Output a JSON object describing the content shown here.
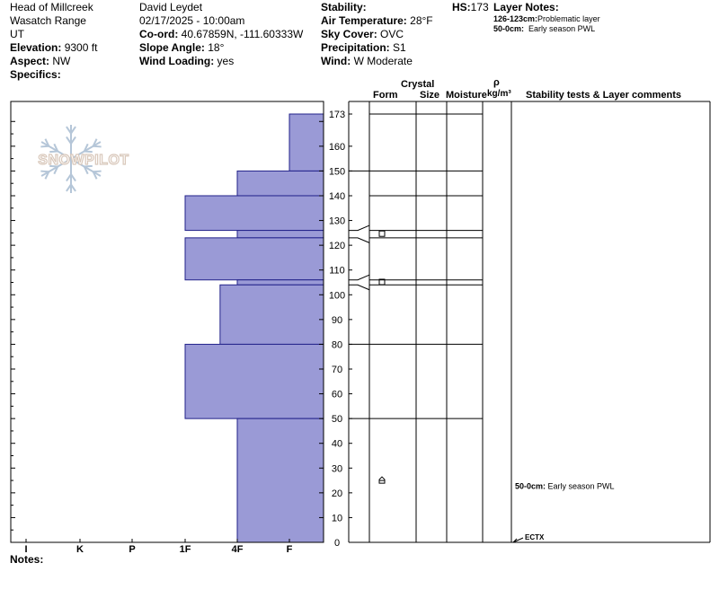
{
  "header": {
    "location": "Head of Millcreek",
    "range": "Wasatch Range",
    "state": "UT",
    "elevation_label": "Elevation:",
    "elevation": "9300 ft",
    "aspect_label": "Aspect:",
    "aspect": "NW",
    "specifics_label": "Specifics:",
    "observer": "David Leydet",
    "datetime": "02/17/2025 - 10:00am",
    "coord_label": "Co-ord:",
    "coord": "40.67859N, -111.60333W",
    "slope_label": "Slope Angle:",
    "slope": "18°",
    "wind_loading_label": "Wind Loading:",
    "wind_loading": "yes",
    "stability_label": "Stability:",
    "air_temp_label": "Air Temperature:",
    "air_temp": "28°F",
    "sky_label": "Sky Cover:",
    "sky": "OVC",
    "precip_label": "Precipitation:",
    "precip": "S1",
    "wind_label": "Wind:",
    "wind": "W Moderate",
    "hs_label": "HS:",
    "hs": "173",
    "layer_notes_label": "Layer Notes:",
    "layer_notes": [
      {
        "range": "126-123cm:",
        "text": "Problematic layer"
      },
      {
        "range": "50-0cm:",
        "text": "Early season PWL"
      }
    ]
  },
  "notes_label": "Notes:",
  "logo_text": "SNOWPILOT",
  "columns": {
    "crystal": "Crystal",
    "form": "Form",
    "size": "Size",
    "moisture": "Moisture",
    "rho": "ρ",
    "density": "kg/m³",
    "stability": "Stability tests & Layer comments"
  },
  "colors": {
    "hardness_fill": "#9a9ad6",
    "hardness_stroke": "#22228a",
    "logo": "#d9c8bb",
    "flake": "#b5c6d8"
  },
  "chart_data": {
    "type": "bar",
    "title": "",
    "y_range": [
      0,
      173
    ],
    "y_ticks": [
      0,
      10,
      20,
      30,
      40,
      50,
      60,
      70,
      80,
      90,
      100,
      110,
      120,
      130,
      140,
      150,
      160,
      173
    ],
    "hardness_scale": [
      "I",
      "K",
      "P",
      "1F",
      "4F",
      "F"
    ],
    "layers": [
      {
        "top": 173,
        "bottom": 150,
        "hardness": 5.0
      },
      {
        "top": 150,
        "bottom": 140,
        "hardness": 4.0
      },
      {
        "top": 140,
        "bottom": 126,
        "hardness": 3.0
      },
      {
        "top": 126,
        "bottom": 123,
        "hardness": 4.0
      },
      {
        "top": 123,
        "bottom": 106,
        "hardness": 3.0
      },
      {
        "top": 106,
        "bottom": 104,
        "hardness": 4.0
      },
      {
        "top": 104,
        "bottom": 80,
        "hardness": 3.67
      },
      {
        "top": 80,
        "bottom": 50,
        "hardness": 3.0
      },
      {
        "top": 50,
        "bottom": 0,
        "hardness": 4.0
      }
    ],
    "layer_lines": [
      173,
      150,
      140,
      126,
      123,
      106,
      104,
      80,
      50
    ],
    "crystal_forms": [
      {
        "depth": 124.5,
        "symbol": "□"
      },
      {
        "depth": 105,
        "symbol": "□"
      },
      {
        "depth": 25,
        "symbol": "⌂"
      }
    ],
    "comments": [
      {
        "depth": 23,
        "range": "50-0cm:",
        "text": "Early season PWL"
      }
    ],
    "tests": [
      {
        "depth": 0,
        "label": "ECTX"
      }
    ]
  }
}
